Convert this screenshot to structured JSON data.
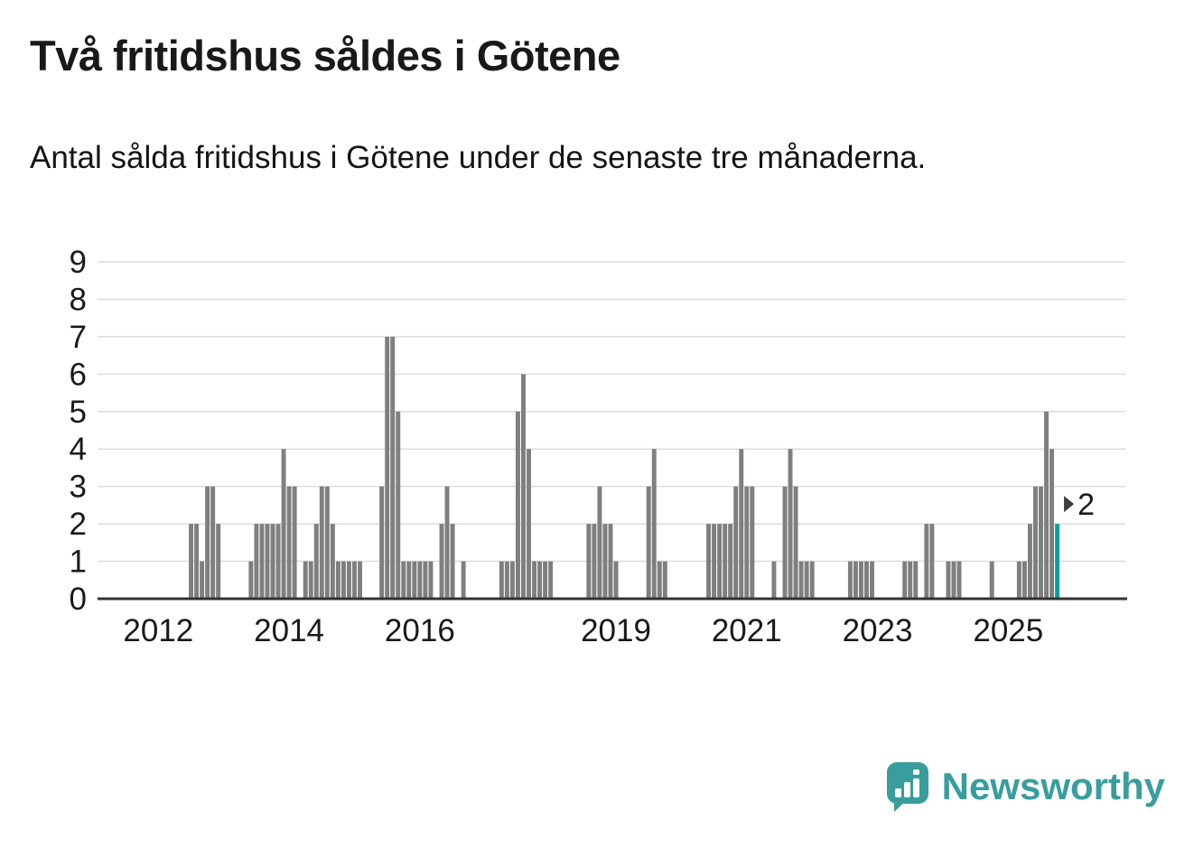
{
  "chart_data": {
    "type": "bar",
    "title": "Två fritidshus såldes i Götene",
    "subtitle": "Antal sålda fritidshus i Götene under de senaste tre månaderna.",
    "xlabel": "",
    "ylabel": "",
    "ylim": [
      0,
      9
    ],
    "yticks": [
      0,
      1,
      2,
      3,
      4,
      5,
      6,
      7,
      8,
      9
    ],
    "xticks": [
      "2012",
      "2014",
      "2016",
      "2019",
      "2021",
      "2023",
      "2025"
    ],
    "x_domain": [
      "2011-03",
      "2026-10"
    ],
    "start_month": "2012-01",
    "end_month": "2025-10",
    "values": [
      0,
      0,
      0,
      0,
      0,
      0,
      2,
      2,
      1,
      3,
      3,
      2,
      0,
      0,
      0,
      0,
      0,
      1,
      2,
      2,
      2,
      2,
      2,
      4,
      3,
      3,
      0,
      1,
      1,
      2,
      3,
      3,
      2,
      1,
      1,
      1,
      1,
      1,
      0,
      0,
      0,
      3,
      7,
      7,
      5,
      1,
      1,
      1,
      1,
      1,
      1,
      0,
      2,
      3,
      2,
      0,
      1,
      0,
      0,
      0,
      0,
      0,
      0,
      1,
      1,
      1,
      5,
      6,
      4,
      1,
      1,
      1,
      1,
      0,
      0,
      0,
      0,
      0,
      0,
      2,
      2,
      3,
      2,
      2,
      1,
      0,
      0,
      0,
      0,
      0,
      3,
      4,
      1,
      1,
      0,
      0,
      0,
      0,
      0,
      0,
      0,
      2,
      2,
      2,
      2,
      2,
      3,
      4,
      3,
      3,
      0,
      0,
      0,
      1,
      0,
      3,
      4,
      3,
      1,
      1,
      1,
      0,
      0,
      0,
      0,
      0,
      0,
      1,
      1,
      1,
      1,
      1,
      0,
      0,
      0,
      0,
      0,
      1,
      1,
      1,
      0,
      2,
      2,
      0,
      0,
      1,
      1,
      1,
      0,
      0,
      0,
      0,
      0,
      1,
      0,
      0,
      0,
      0,
      1,
      1,
      2,
      3,
      3,
      5,
      4,
      2
    ],
    "highlight_last": true,
    "annotation": {
      "text": "2"
    },
    "bar_color": "#7f7f7f",
    "highlight_color": "#00a1a1",
    "grid_color": "#dcdcdc",
    "axis_color": "#333333",
    "text_color": "#1a1a1a",
    "legend": "off",
    "grid": "horizontal"
  },
  "footer": {
    "brand": "Newsworthy",
    "brand_color": "#3a9d9d"
  }
}
